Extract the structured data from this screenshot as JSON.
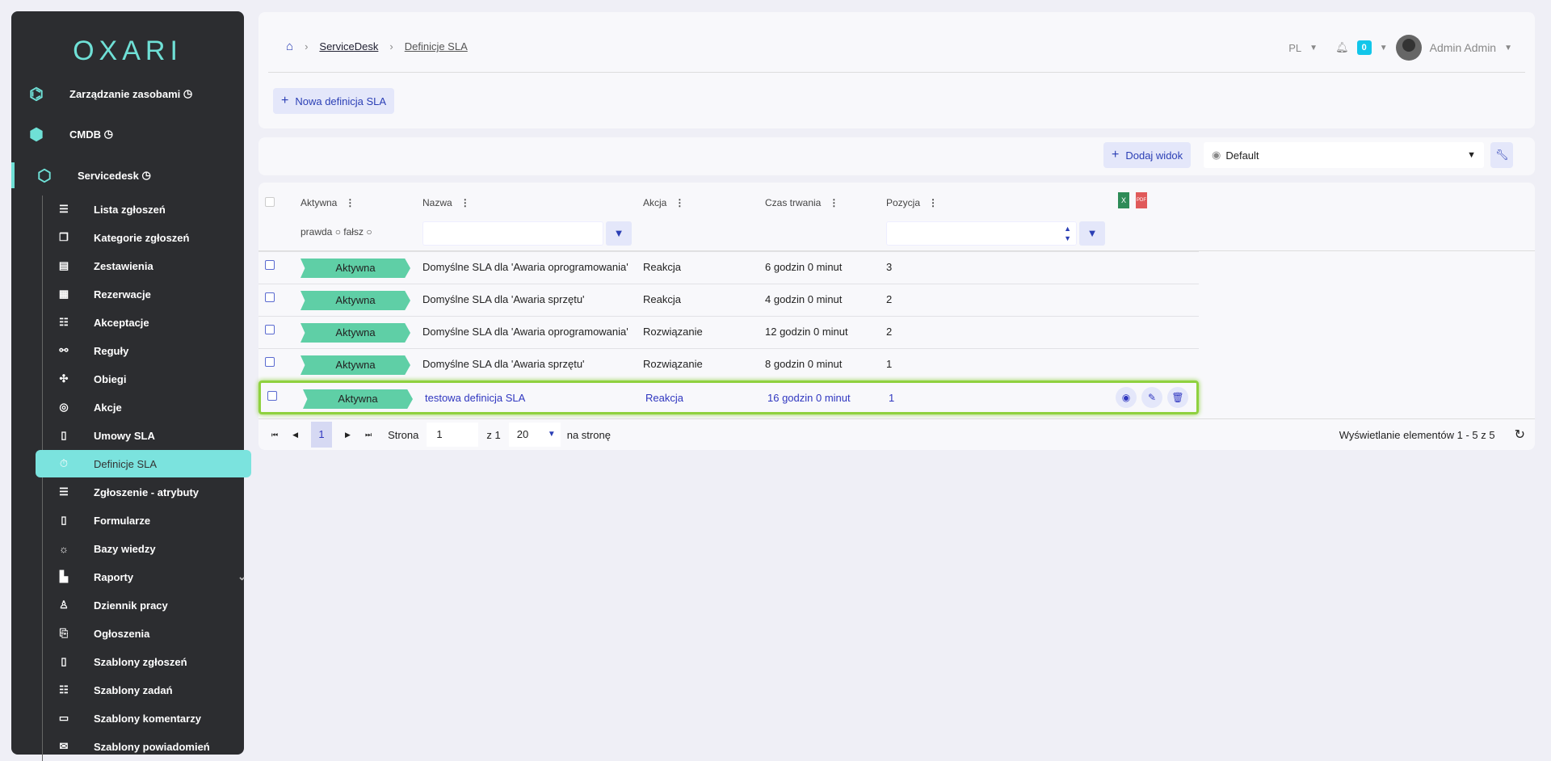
{
  "sidebar": {
    "logo": "OXARI",
    "top": [
      {
        "label": "Zarządzanie zasobami",
        "icon": "hexagons-icon"
      },
      {
        "label": "CMDB",
        "icon": "cmdb-icon"
      },
      {
        "label": "Servicedesk",
        "icon": "servicedesk-icon"
      }
    ],
    "items": [
      {
        "label": "Lista zgłoszeń",
        "icon": "list-icon"
      },
      {
        "label": "Kategorie zgłoszeń",
        "icon": "categories-icon"
      },
      {
        "label": "Zestawienia",
        "icon": "table-icon"
      },
      {
        "label": "Rezerwacje",
        "icon": "calendar-icon"
      },
      {
        "label": "Akceptacje",
        "icon": "checklist-icon"
      },
      {
        "label": "Reguły",
        "icon": "rules-icon"
      },
      {
        "label": "Obiegi",
        "icon": "workflow-icon"
      },
      {
        "label": "Akcje",
        "icon": "target-icon"
      },
      {
        "label": "Umowy SLA",
        "icon": "document-icon"
      },
      {
        "label": "Definicje SLA",
        "icon": "stopwatch-icon",
        "active": true
      },
      {
        "label": "Zgłoszenie - atrybuty",
        "icon": "list-icon"
      },
      {
        "label": "Formularze",
        "icon": "form-icon"
      },
      {
        "label": "Bazy wiedzy",
        "icon": "bulb-icon"
      },
      {
        "label": "Raporty",
        "icon": "chart-icon",
        "expandable": true
      },
      {
        "label": "Dziennik pracy",
        "icon": "user-clock-icon"
      },
      {
        "label": "Ogłoszenia",
        "icon": "scroll-icon"
      },
      {
        "label": "Szablony zgłoszeń",
        "icon": "form-icon"
      },
      {
        "label": "Szablony zadań",
        "icon": "checklist-icon"
      },
      {
        "label": "Szablony komentarzy",
        "icon": "comment-icon"
      },
      {
        "label": "Szablony powiadomień",
        "icon": "mail-icon"
      }
    ]
  },
  "header": {
    "breadcrumb": [
      "ServiceDesk",
      "Definicje SLA"
    ],
    "lang": "PL",
    "notifications": "0",
    "user": "Admin Admin",
    "new_button": "Nowa definicja SLA"
  },
  "toolbar": {
    "add_view": "Dodaj widok",
    "view_select": "Default"
  },
  "table": {
    "columns": [
      "Aktywna",
      "Nazwa",
      "Akcja",
      "Czas trwania",
      "Pozycja"
    ],
    "filter_true": "prawda",
    "filter_false": "fałsz",
    "rows": [
      {
        "status": "Aktywna",
        "name": "Domyślne SLA dla 'Awaria oprogramowania'",
        "action": "Reakcja",
        "duration": "6 godzin 0 minut",
        "position": "3"
      },
      {
        "status": "Aktywna",
        "name": "Domyślne SLA dla 'Awaria sprzętu'",
        "action": "Reakcja",
        "duration": "4 godzin 0 minut",
        "position": "2"
      },
      {
        "status": "Aktywna",
        "name": "Domyślne SLA dla 'Awaria oprogramowania'",
        "action": "Rozwiązanie",
        "duration": "12 godzin 0 minut",
        "position": "2"
      },
      {
        "status": "Aktywna",
        "name": "Domyślne SLA dla 'Awaria sprzętu'",
        "action": "Rozwiązanie",
        "duration": "8 godzin 0 minut",
        "position": "1"
      },
      {
        "status": "Aktywna",
        "name": "testowa definicja SLA",
        "action": "Reakcja",
        "duration": "16 godzin 0 minut",
        "position": "1",
        "highlighted": true
      }
    ]
  },
  "pagination": {
    "current": "1",
    "page_label": "Strona",
    "page_value": "1",
    "of": "z 1",
    "per_page": "20",
    "per_page_label": "na stronę",
    "summary": "Wyświetlanie elementów 1 - 5 z 5"
  },
  "colors": {
    "accent": "#7be3de",
    "badge": "#5fcfa6",
    "highlight": "#8fd13f"
  }
}
